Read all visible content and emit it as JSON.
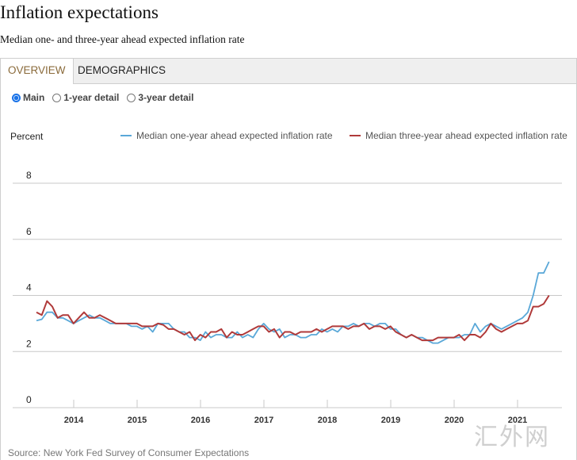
{
  "header": {
    "title": "Inflation expectations",
    "subtitle": "Median one- and three-year ahead expected inflation rate"
  },
  "tabs": [
    {
      "label": "OVERVIEW"
    },
    {
      "label": "DEMOGRAPHICS"
    }
  ],
  "radios": [
    {
      "label": "Main",
      "selected": true
    },
    {
      "label": "1-year detail",
      "selected": false
    },
    {
      "label": "3-year detail",
      "selected": false
    }
  ],
  "colors": {
    "one_year": "#5aa8d8",
    "three_year": "#b03a3a"
  },
  "watermark": "汇外网",
  "chart_data": {
    "type": "line",
    "ylabel": "Percent",
    "ylim": [
      0,
      8
    ],
    "yticks": [
      "0",
      "2",
      "4",
      "6",
      "8"
    ],
    "xticks": [
      "2014",
      "2015",
      "2016",
      "2017",
      "2018",
      "2019",
      "2020",
      "2021"
    ],
    "x_start": "2013-06",
    "x_end": "2021-08",
    "frequency": "monthly",
    "legend_position": "top-right",
    "source": "Source: New York Fed Survey of Consumer Expectations",
    "series": [
      {
        "name": "Median one-year ahead expected inflation rate",
        "values": [
          3.1,
          3.15,
          3.4,
          3.4,
          3.2,
          3.2,
          3.1,
          3.0,
          3.1,
          3.2,
          3.3,
          3.2,
          3.2,
          3.1,
          3.0,
          3.0,
          3.0,
          3.0,
          2.9,
          2.9,
          2.8,
          2.9,
          2.7,
          3.0,
          3.0,
          3.0,
          2.8,
          2.7,
          2.7,
          2.5,
          2.5,
          2.4,
          2.7,
          2.5,
          2.6,
          2.6,
          2.5,
          2.5,
          2.7,
          2.5,
          2.6,
          2.5,
          2.8,
          3.0,
          2.8,
          2.7,
          2.8,
          2.5,
          2.6,
          2.6,
          2.5,
          2.5,
          2.6,
          2.6,
          2.8,
          2.7,
          2.8,
          2.7,
          2.9,
          2.9,
          3.0,
          2.9,
          3.0,
          3.0,
          2.9,
          3.0,
          3.0,
          2.8,
          2.8,
          2.6,
          2.5,
          2.6,
          2.5,
          2.5,
          2.4,
          2.3,
          2.3,
          2.4,
          2.5,
          2.5,
          2.5,
          2.6,
          2.6,
          3.0,
          2.7,
          2.9,
          3.0,
          2.9,
          2.8,
          2.9,
          3.0,
          3.1,
          3.2,
          3.4,
          4.0,
          4.8,
          4.8,
          5.2
        ]
      },
      {
        "name": "Median three-year ahead expected inflation rate",
        "values": [
          3.4,
          3.3,
          3.8,
          3.6,
          3.2,
          3.3,
          3.3,
          3.0,
          3.2,
          3.4,
          3.2,
          3.2,
          3.3,
          3.2,
          3.1,
          3.0,
          3.0,
          3.0,
          3.0,
          3.0,
          2.9,
          2.9,
          2.9,
          3.0,
          2.95,
          2.8,
          2.8,
          2.7,
          2.6,
          2.7,
          2.4,
          2.6,
          2.5,
          2.7,
          2.7,
          2.8,
          2.5,
          2.7,
          2.6,
          2.6,
          2.7,
          2.8,
          2.9,
          2.9,
          2.7,
          2.8,
          2.5,
          2.7,
          2.7,
          2.6,
          2.7,
          2.7,
          2.7,
          2.8,
          2.7,
          2.8,
          2.9,
          2.9,
          2.9,
          2.8,
          2.9,
          2.9,
          3.0,
          2.8,
          2.9,
          2.9,
          2.8,
          2.9,
          2.7,
          2.6,
          2.5,
          2.6,
          2.5,
          2.4,
          2.4,
          2.4,
          2.5,
          2.5,
          2.5,
          2.5,
          2.6,
          2.4,
          2.6,
          2.6,
          2.5,
          2.7,
          3.0,
          2.8,
          2.7,
          2.8,
          2.9,
          3.0,
          3.0,
          3.1,
          3.6,
          3.6,
          3.7,
          4.0
        ]
      }
    ]
  }
}
